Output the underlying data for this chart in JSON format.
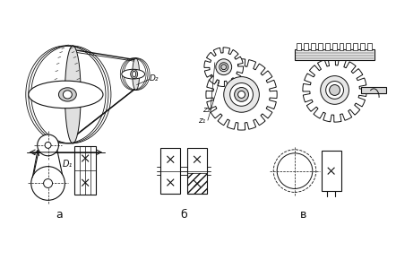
{
  "bg_color": "#ffffff",
  "line_color": "#111111",
  "label_a": "а",
  "label_b": "б",
  "label_v": "в",
  "d1_label": "D₁",
  "d2_label": "D₂",
  "z1_label": "z₁",
  "z2_label": "z₂",
  "figw": 4.42,
  "figh": 3.0,
  "dpi": 100
}
